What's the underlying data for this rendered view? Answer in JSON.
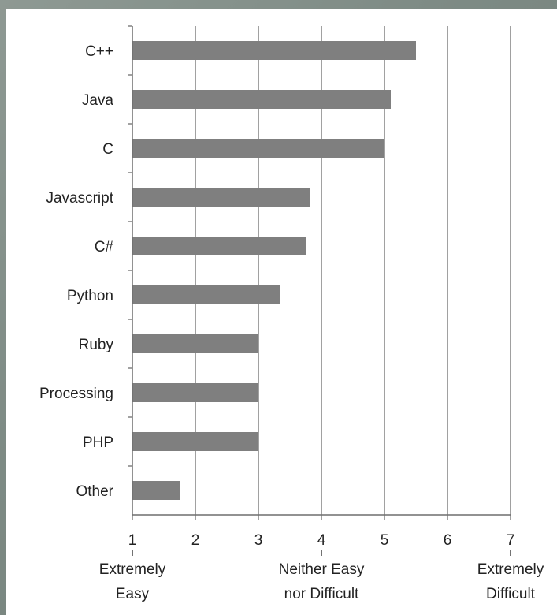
{
  "chart_data": {
    "type": "bar",
    "orientation": "horizontal",
    "categories": [
      "C++",
      "Java",
      "C",
      "Javascript",
      "C#",
      "Python",
      "Ruby",
      "Processing",
      "PHP",
      "Other"
    ],
    "values": [
      5.5,
      5.1,
      5.0,
      3.82,
      3.75,
      3.35,
      3.0,
      3.0,
      3.0,
      1.75
    ],
    "xlim": [
      1,
      7
    ],
    "xticks": [
      "1",
      "2",
      "3",
      "4",
      "5",
      "6",
      "7"
    ],
    "grid": true,
    "bar_color": "#7f7f7f",
    "annotations": [
      {
        "at": 1,
        "lines": [
          "Extremely",
          "Easy"
        ]
      },
      {
        "at": 4,
        "lines": [
          "Neither Easy",
          "nor Difficult"
        ]
      },
      {
        "at": 7,
        "lines": [
          "Extremely",
          "Difficult"
        ]
      }
    ]
  }
}
